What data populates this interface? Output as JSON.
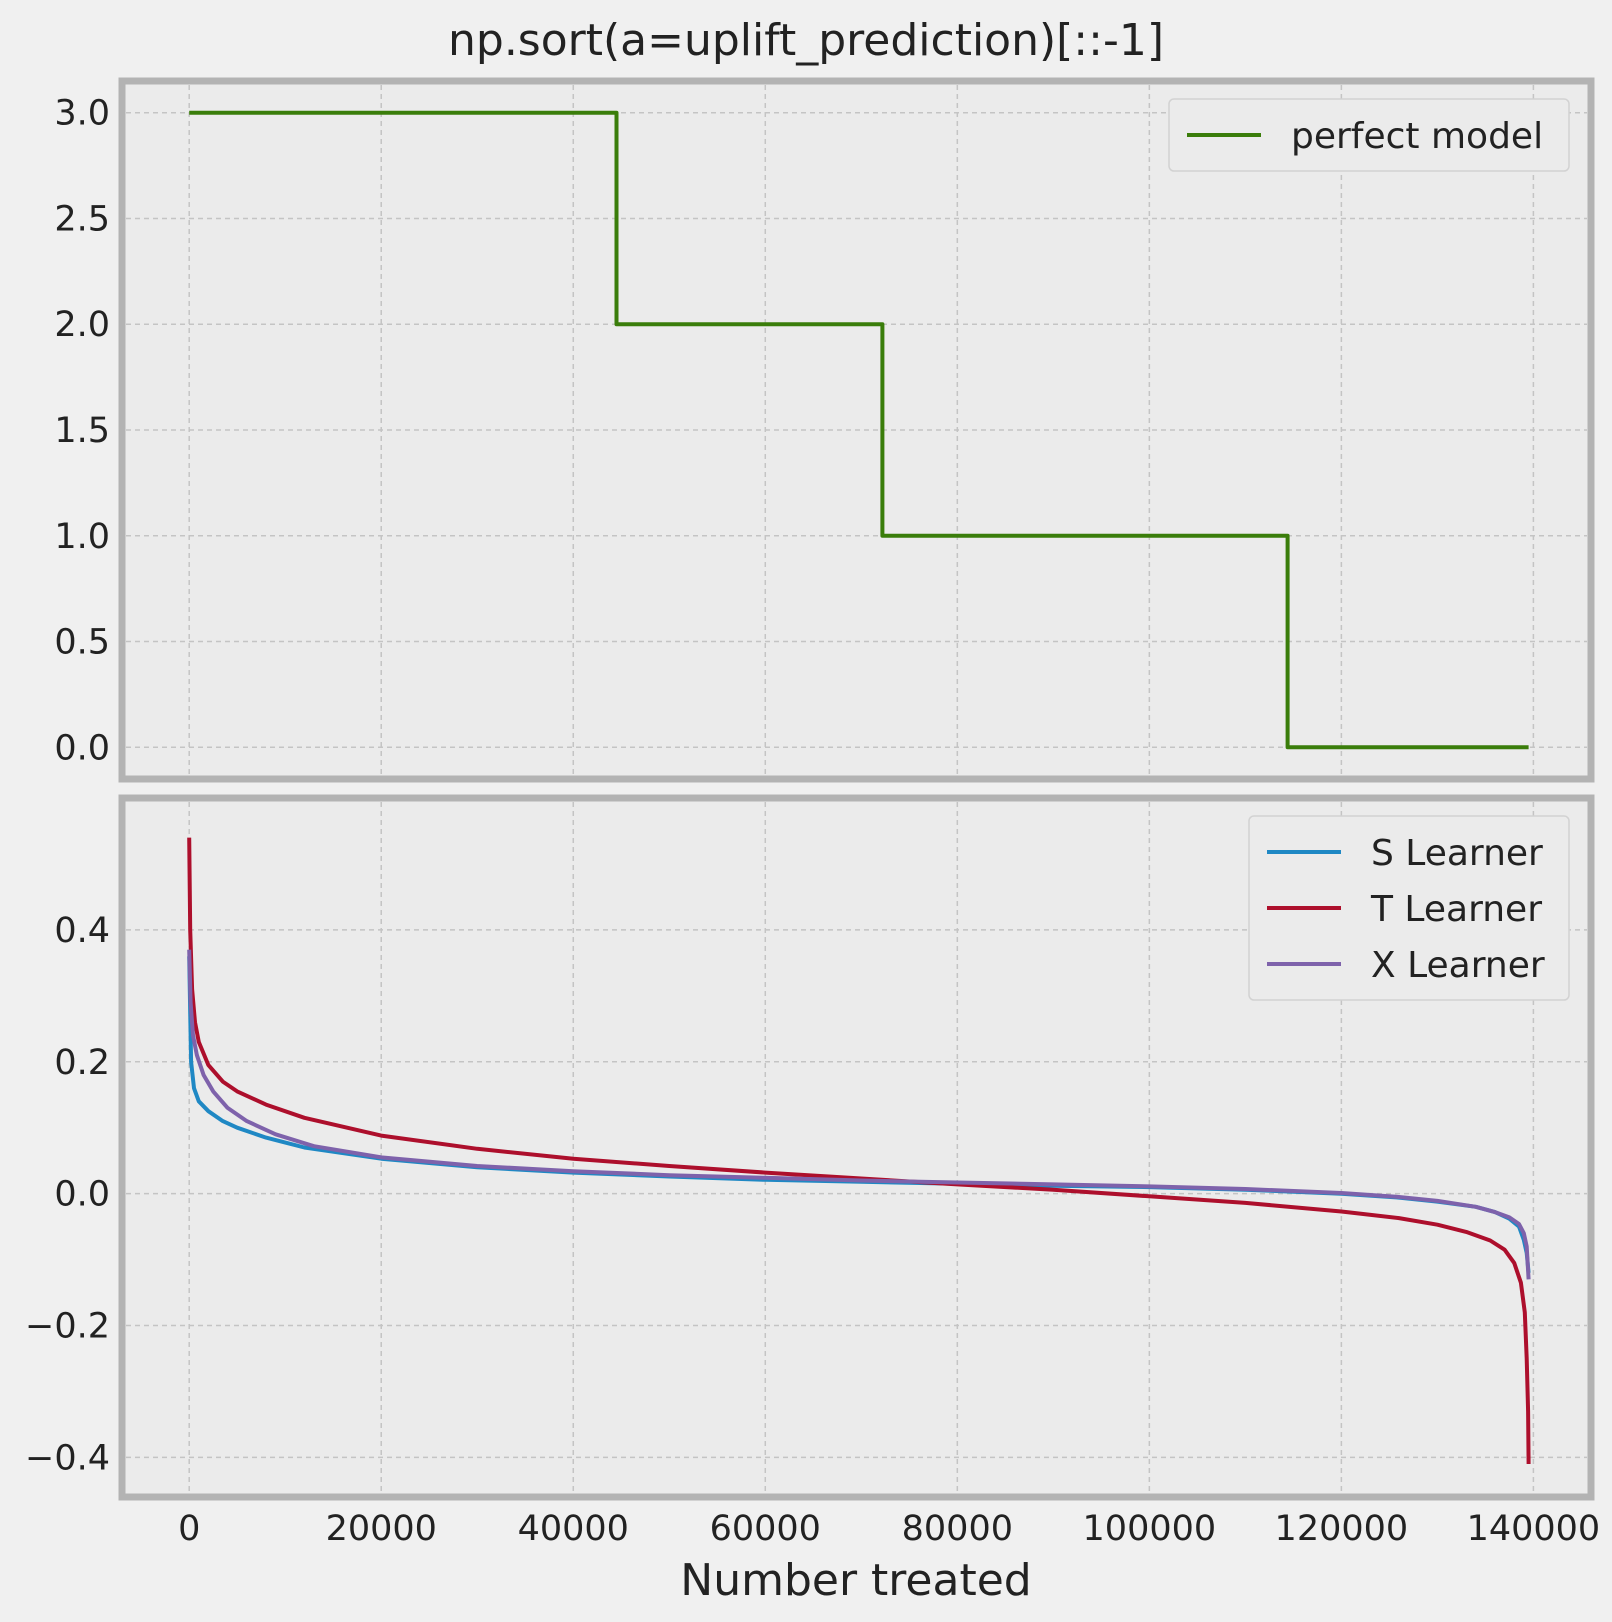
{
  "chart_data": {
    "title": "np.sort(a=uplift_prediction)[::-1]",
    "xlabel": "Number treated",
    "xticks": [
      0,
      20000,
      40000,
      60000,
      80000,
      100000,
      120000,
      140000
    ],
    "xlim": [
      -7000,
      146000
    ],
    "panels": [
      {
        "type": "line",
        "ylim": [
          -0.15,
          3.15
        ],
        "yticks": [
          {
            "value": 0.0,
            "label": "0.0"
          },
          {
            "value": 0.5,
            "label": "0.5"
          },
          {
            "value": 1.0,
            "label": "1.0"
          },
          {
            "value": 1.5,
            "label": "1.5"
          },
          {
            "value": 2.0,
            "label": "2.0"
          },
          {
            "value": 2.5,
            "label": "2.5"
          },
          {
            "value": 3.0,
            "label": "3.0"
          }
        ],
        "legend_position": "top-right",
        "series": [
          {
            "name": "perfect model",
            "color": "#3a7d0a",
            "step": true,
            "x": [
              0,
              44500,
              44500,
              72200,
              72200,
              114400,
              114400,
              139500
            ],
            "y": [
              3.0,
              3.0,
              2.0,
              2.0,
              1.0,
              1.0,
              0.0,
              0.0
            ]
          }
        ]
      },
      {
        "type": "line",
        "ylim": [
          -0.46,
          0.6
        ],
        "yticks": [
          {
            "value": -0.4,
            "label": "−0.4"
          },
          {
            "value": -0.2,
            "label": "−0.2"
          },
          {
            "value": 0.0,
            "label": "0.0"
          },
          {
            "value": 0.2,
            "label": "0.2"
          },
          {
            "value": 0.4,
            "label": "0.4"
          }
        ],
        "legend_position": "top-right",
        "series": [
          {
            "name": "S Learner",
            "color": "#1f88c4",
            "x": [
              0,
              200,
              500,
              1000,
              2000,
              3500,
              5000,
              8000,
              12000,
              20000,
              30000,
              40000,
              50000,
              60000,
              70000,
              80000,
              90000,
              100000,
              110000,
              120000,
              126000,
              130000,
              134000,
              136000,
              137500,
              138500,
              139000,
              139300,
              139500
            ],
            "y": [
              0.36,
              0.2,
              0.16,
              0.14,
              0.125,
              0.11,
              0.1,
              0.085,
              0.07,
              0.053,
              0.04,
              0.032,
              0.026,
              0.021,
              0.018,
              0.015,
              0.012,
              0.01,
              0.006,
              0.0,
              -0.006,
              -0.012,
              -0.02,
              -0.028,
              -0.038,
              -0.05,
              -0.07,
              -0.09,
              -0.12
            ]
          },
          {
            "name": "T Learner",
            "color": "#ad0f2c",
            "x": [
              0,
              100,
              300,
              600,
              1000,
              2000,
              3500,
              5000,
              8000,
              12000,
              20000,
              30000,
              40000,
              50000,
              60000,
              70000,
              80000,
              90000,
              100000,
              110000,
              120000,
              126000,
              130000,
              133000,
              135500,
              137000,
              138000,
              138700,
              139100,
              139300,
              139450,
              139500
            ],
            "y": [
              0.54,
              0.4,
              0.31,
              0.26,
              0.23,
              0.195,
              0.17,
              0.155,
              0.135,
              0.115,
              0.088,
              0.068,
              0.053,
              0.042,
              0.032,
              0.023,
              0.014,
              0.006,
              -0.004,
              -0.014,
              -0.027,
              -0.037,
              -0.047,
              -0.058,
              -0.071,
              -0.085,
              -0.105,
              -0.135,
              -0.18,
              -0.25,
              -0.33,
              -0.41
            ]
          },
          {
            "name": "X Learner",
            "color": "#7e62ab",
            "x": [
              0,
              150,
              400,
              800,
              1500,
              2500,
              4000,
              6000,
              9000,
              13000,
              20000,
              30000,
              40000,
              50000,
              60000,
              70000,
              80000,
              90000,
              100000,
              110000,
              120000,
              126000,
              130000,
              134000,
              136000,
              137500,
              138500,
              139000,
              139300,
              139500
            ],
            "y": [
              0.37,
              0.29,
              0.24,
              0.21,
              0.18,
              0.155,
              0.13,
              0.11,
              0.09,
              0.072,
              0.055,
              0.042,
              0.034,
              0.028,
              0.024,
              0.02,
              0.017,
              0.014,
              0.011,
              0.007,
              0.001,
              -0.005,
              -0.011,
              -0.02,
              -0.028,
              -0.036,
              -0.046,
              -0.06,
              -0.08,
              -0.13
            ]
          }
        ]
      }
    ]
  }
}
